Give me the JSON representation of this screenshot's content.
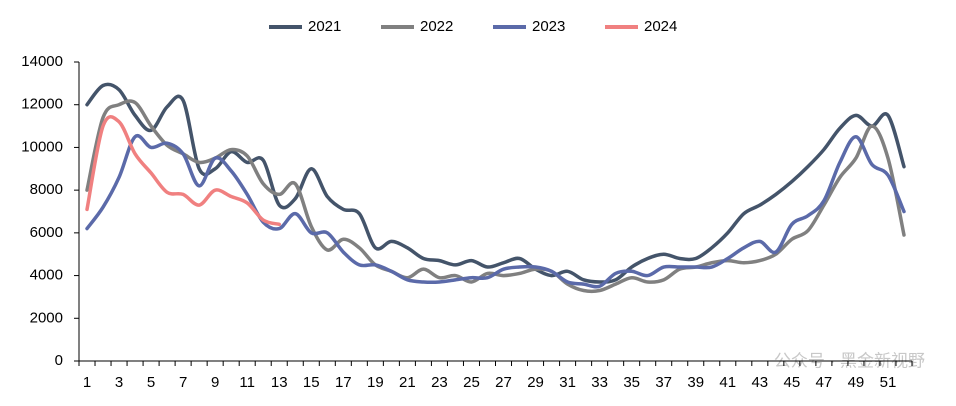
{
  "chart_data": {
    "type": "line",
    "categories": [
      "1",
      null,
      "3",
      null,
      "5",
      null,
      "7",
      null,
      "9",
      null,
      "11",
      null,
      "13",
      null,
      "15",
      null,
      "17",
      null,
      "19",
      null,
      "21",
      null,
      "23",
      null,
      "25",
      null,
      "27",
      null,
      "29",
      null,
      "31",
      null,
      "33",
      null,
      "35",
      null,
      "37",
      null,
      "39",
      null,
      "41",
      null,
      "43",
      null,
      "45",
      null,
      "47",
      null,
      "49",
      null,
      "51",
      null
    ],
    "series": [
      {
        "name": "2021",
        "color": "#44546a",
        "values": [
          12000,
          12900,
          12700,
          11500,
          10800,
          11900,
          12200,
          9000,
          9000,
          9800,
          9300,
          9400,
          7300,
          7600,
          9000,
          7700,
          7100,
          6900,
          5300,
          5600,
          5300,
          4800,
          4700,
          4500,
          4700,
          4400,
          4600,
          4800,
          4300,
          4000,
          4200,
          3800,
          3700,
          3800,
          4400,
          4800,
          5000,
          4800,
          4800,
          5300,
          6000,
          6900,
          7300,
          7800,
          8400,
          9100,
          9900,
          10900,
          11500,
          11000,
          11500,
          9100
        ]
      },
      {
        "name": "2022",
        "color": "#808080",
        "values": [
          8000,
          11400,
          12000,
          12100,
          11000,
          10100,
          9700,
          9300,
          9500,
          9900,
          9600,
          8300,
          7800,
          8300,
          6300,
          5200,
          5700,
          5300,
          4500,
          4200,
          3900,
          4300,
          3900,
          4000,
          3700,
          4100,
          4000,
          4100,
          4300,
          4200,
          3600,
          3300,
          3300,
          3600,
          3900,
          3700,
          3800,
          4300,
          4400,
          4600,
          4700,
          4600,
          4700,
          5000,
          5700,
          6100,
          7300,
          8600,
          9500,
          11000,
          9500,
          5900
        ]
      },
      {
        "name": "2023",
        "color": "#5b6aa9",
        "values": [
          6200,
          7200,
          8600,
          10500,
          10000,
          10200,
          9700,
          8200,
          9500,
          8900,
          7800,
          6500,
          6200,
          6900,
          6000,
          6000,
          5100,
          4500,
          4500,
          4200,
          3800,
          3700,
          3700,
          3800,
          3900,
          3900,
          4300,
          4400,
          4400,
          4200,
          3700,
          3600,
          3500,
          4100,
          4200,
          4000,
          4400,
          4400,
          4400,
          4400,
          4800,
          5300,
          5600,
          5100,
          6400,
          6800,
          7500,
          9300,
          10500,
          9200,
          8700,
          7000
        ]
      },
      {
        "name": "2024",
        "color": "#f08080",
        "values": [
          7100,
          11000,
          11200,
          9700,
          8800,
          7900,
          7800,
          7300,
          8000,
          7700,
          7400,
          6600,
          6400,
          null,
          null,
          null,
          null,
          null,
          null,
          null,
          null,
          null,
          null,
          null,
          null,
          null,
          null,
          null,
          null,
          null,
          null,
          null,
          null,
          null,
          null,
          null,
          null,
          null,
          null,
          null,
          null,
          null,
          null,
          null,
          null,
          null,
          null,
          null,
          null,
          null,
          null,
          null
        ]
      }
    ],
    "ylim": [
      0,
      14000
    ],
    "yticks": [
      0,
      2000,
      4000,
      6000,
      8000,
      10000,
      12000,
      14000
    ],
    "legend": "top",
    "grid": false,
    "annotation": "公众号 · 黑金新视野"
  }
}
